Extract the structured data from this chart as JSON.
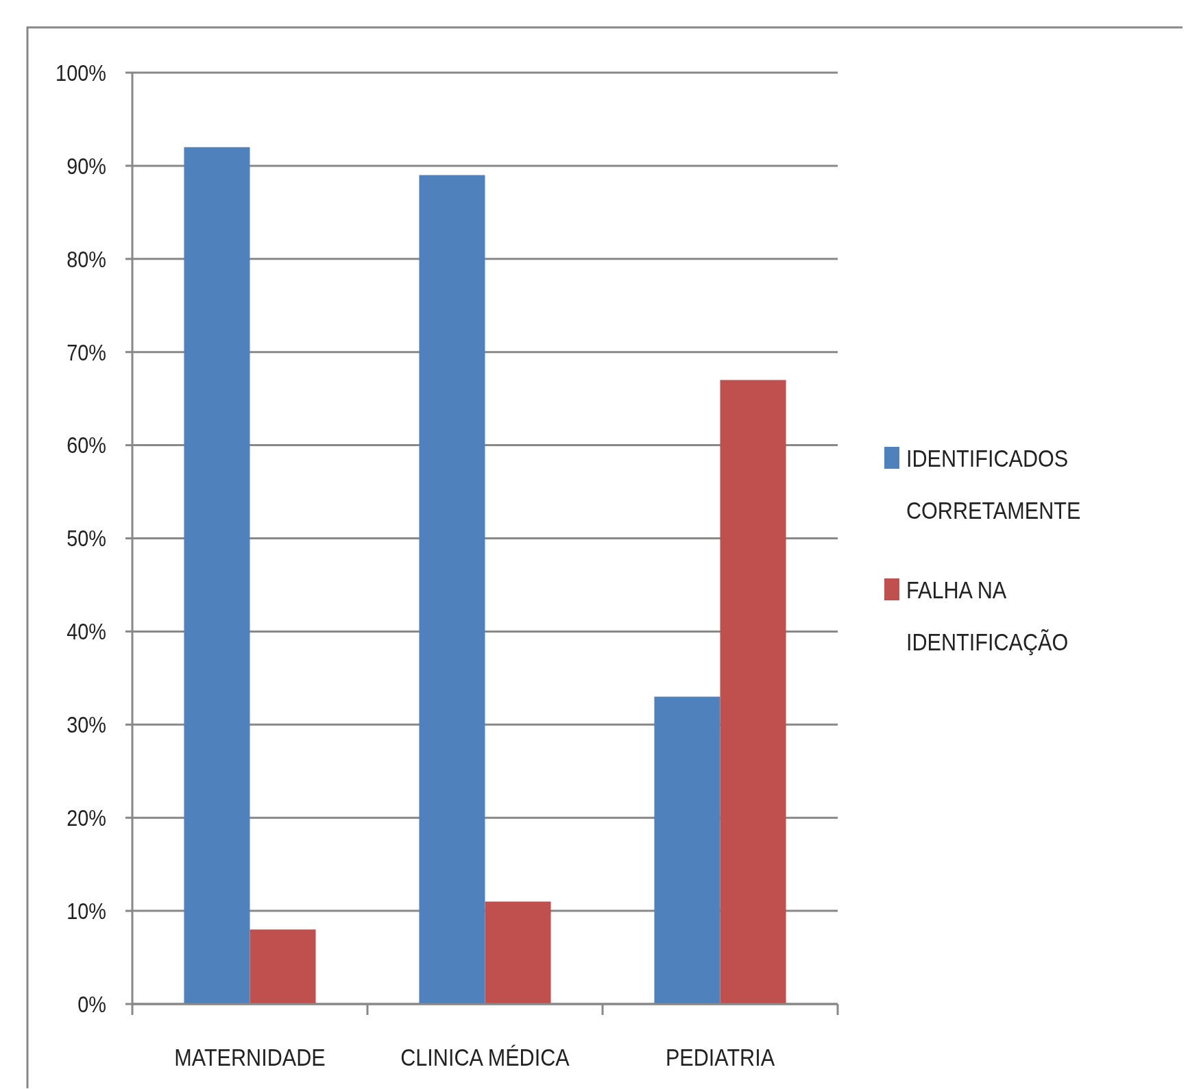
{
  "chart_data": {
    "type": "bar",
    "categories": [
      "MATERNIDADE",
      "CLINICA MÉDICA",
      "PEDIATRIA"
    ],
    "series": [
      {
        "name": "IDENTIFICADOS CORRETAMENTE",
        "color": "#4f81bd",
        "values": [
          92,
          89,
          33
        ]
      },
      {
        "name": "FALHA NA IDENTIFICAÇÃO",
        "color": "#c0504d",
        "values": [
          8,
          11,
          67
        ]
      }
    ],
    "ylim": [
      0,
      100
    ],
    "yticks": [
      {
        "value": 0,
        "label": "0%"
      },
      {
        "value": 10,
        "label": "10%"
      },
      {
        "value": 20,
        "label": "20%"
      },
      {
        "value": 30,
        "label": "30%"
      },
      {
        "value": 40,
        "label": "40%"
      },
      {
        "value": 50,
        "label": "50%"
      },
      {
        "value": 60,
        "label": "60%"
      },
      {
        "value": 70,
        "label": "70%"
      },
      {
        "value": 80,
        "label": "80%"
      },
      {
        "value": 90,
        "label": "90%"
      },
      {
        "value": 100,
        "label": "100%"
      }
    ],
    "grid": "y",
    "legend": "right"
  }
}
